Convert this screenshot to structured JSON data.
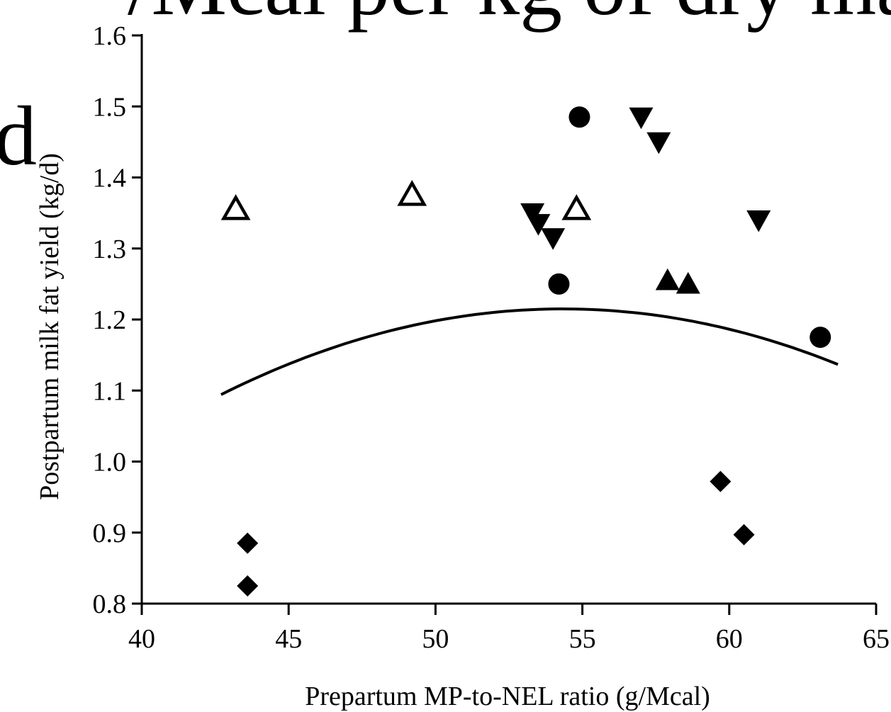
{
  "background_text": {
    "top_line": "/Mcal per kg of dry matter.",
    "left_glyph": "d"
  },
  "chart_data": {
    "type": "scatter",
    "title": "",
    "xlabel": "Prepartum MP-to-NEL ratio (g/Mcal)",
    "ylabel": "Postpartum milk fat yield  (kg/d)",
    "xlim": [
      40,
      65
    ],
    "ylim": [
      0.8,
      1.6
    ],
    "x_ticks": [
      40,
      45,
      50,
      55,
      60,
      65
    ],
    "x_tick_labels": [
      "40",
      "45",
      "50",
      "55",
      "60",
      "65"
    ],
    "y_ticks": [
      0.8,
      0.9,
      1.0,
      1.1,
      1.2,
      1.3,
      1.4,
      1.5,
      1.6
    ],
    "y_tick_labels": [
      "0.8",
      "0.9",
      "1.0",
      "1.1",
      "1.2",
      "1.3",
      "1.4",
      "1.5",
      "1.6"
    ],
    "grid": false,
    "legend": "none",
    "series": [
      {
        "marker": "open-triangle-up",
        "color": "#000000",
        "points": [
          [
            43.2,
            1.355
          ],
          [
            49.2,
            1.375
          ],
          [
            54.8,
            1.355
          ]
        ]
      },
      {
        "marker": "filled-circle",
        "color": "#000000",
        "points": [
          [
            54.9,
            1.485
          ],
          [
            54.2,
            1.25
          ],
          [
            63.1,
            1.175
          ]
        ]
      },
      {
        "marker": "filled-triangle-down",
        "color": "#000000",
        "points": [
          [
            57.0,
            1.485
          ],
          [
            57.6,
            1.45
          ],
          [
            53.3,
            1.35
          ],
          [
            53.5,
            1.335
          ],
          [
            54.0,
            1.315
          ],
          [
            61.0,
            1.34
          ]
        ]
      },
      {
        "marker": "filled-triangle-up",
        "color": "#000000",
        "points": [
          [
            57.9,
            1.255
          ],
          [
            58.6,
            1.25
          ]
        ]
      },
      {
        "marker": "filled-diamond",
        "color": "#000000",
        "points": [
          [
            43.6,
            0.885
          ],
          [
            43.6,
            0.825
          ],
          [
            59.7,
            0.972
          ],
          [
            60.5,
            0.897
          ]
        ]
      }
    ],
    "fitted_curve": {
      "type": "quadratic",
      "x_range": [
        42.7,
        63.7
      ],
      "points": [
        [
          42.7,
          1.1
        ],
        [
          47.0,
          1.159
        ],
        [
          50.0,
          1.195
        ],
        [
          54.5,
          1.215
        ],
        [
          57.0,
          1.212
        ],
        [
          60.0,
          1.195
        ],
        [
          63.7,
          1.13
        ]
      ]
    }
  }
}
